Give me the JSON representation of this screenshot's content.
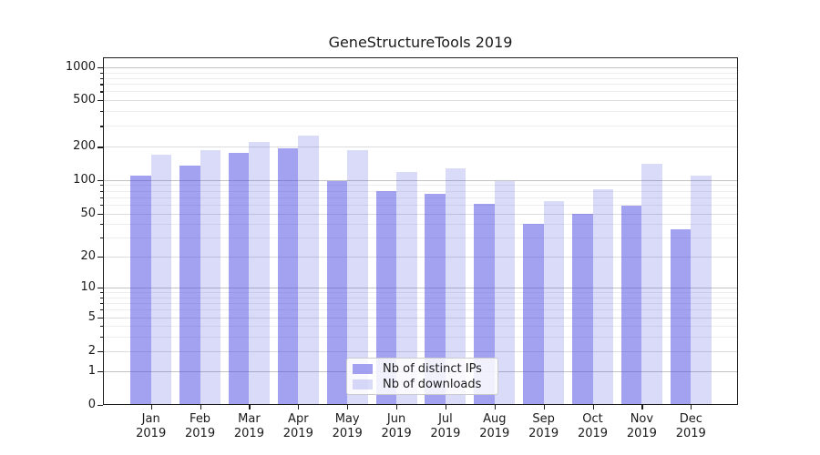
{
  "chart_data": {
    "type": "bar",
    "title": "GeneStructureTools 2019",
    "categories": [
      "Jan",
      "Feb",
      "Mar",
      "Apr",
      "May",
      "Jun",
      "Jul",
      "Aug",
      "Sep",
      "Oct",
      "Nov",
      "Dec"
    ],
    "category_year": "2019",
    "series": [
      {
        "name": "Nb of distinct IPs",
        "color": "rgba(72,70,227,0.5)",
        "values": [
          110,
          135,
          175,
          195,
          97,
          80,
          75,
          61,
          40,
          50,
          59,
          36
        ]
      },
      {
        "name": "Nb of downloads",
        "color": "rgba(72,70,227,0.2)",
        "values": [
          170,
          185,
          220,
          250,
          185,
          117,
          127,
          98,
          65,
          82,
          140,
          110
        ]
      }
    ],
    "yscale": "symlog",
    "yticks": [
      0,
      1,
      2,
      5,
      10,
      20,
      50,
      100,
      200,
      500,
      1000
    ],
    "yminorticks": [
      3,
      4,
      6,
      7,
      8,
      9,
      30,
      40,
      60,
      70,
      80,
      90,
      300,
      400,
      600,
      700,
      800,
      900
    ],
    "ylim": [
      0,
      1260
    ],
    "grid": "both",
    "legend_position": "lower center",
    "accent_color": "#4846e3"
  }
}
